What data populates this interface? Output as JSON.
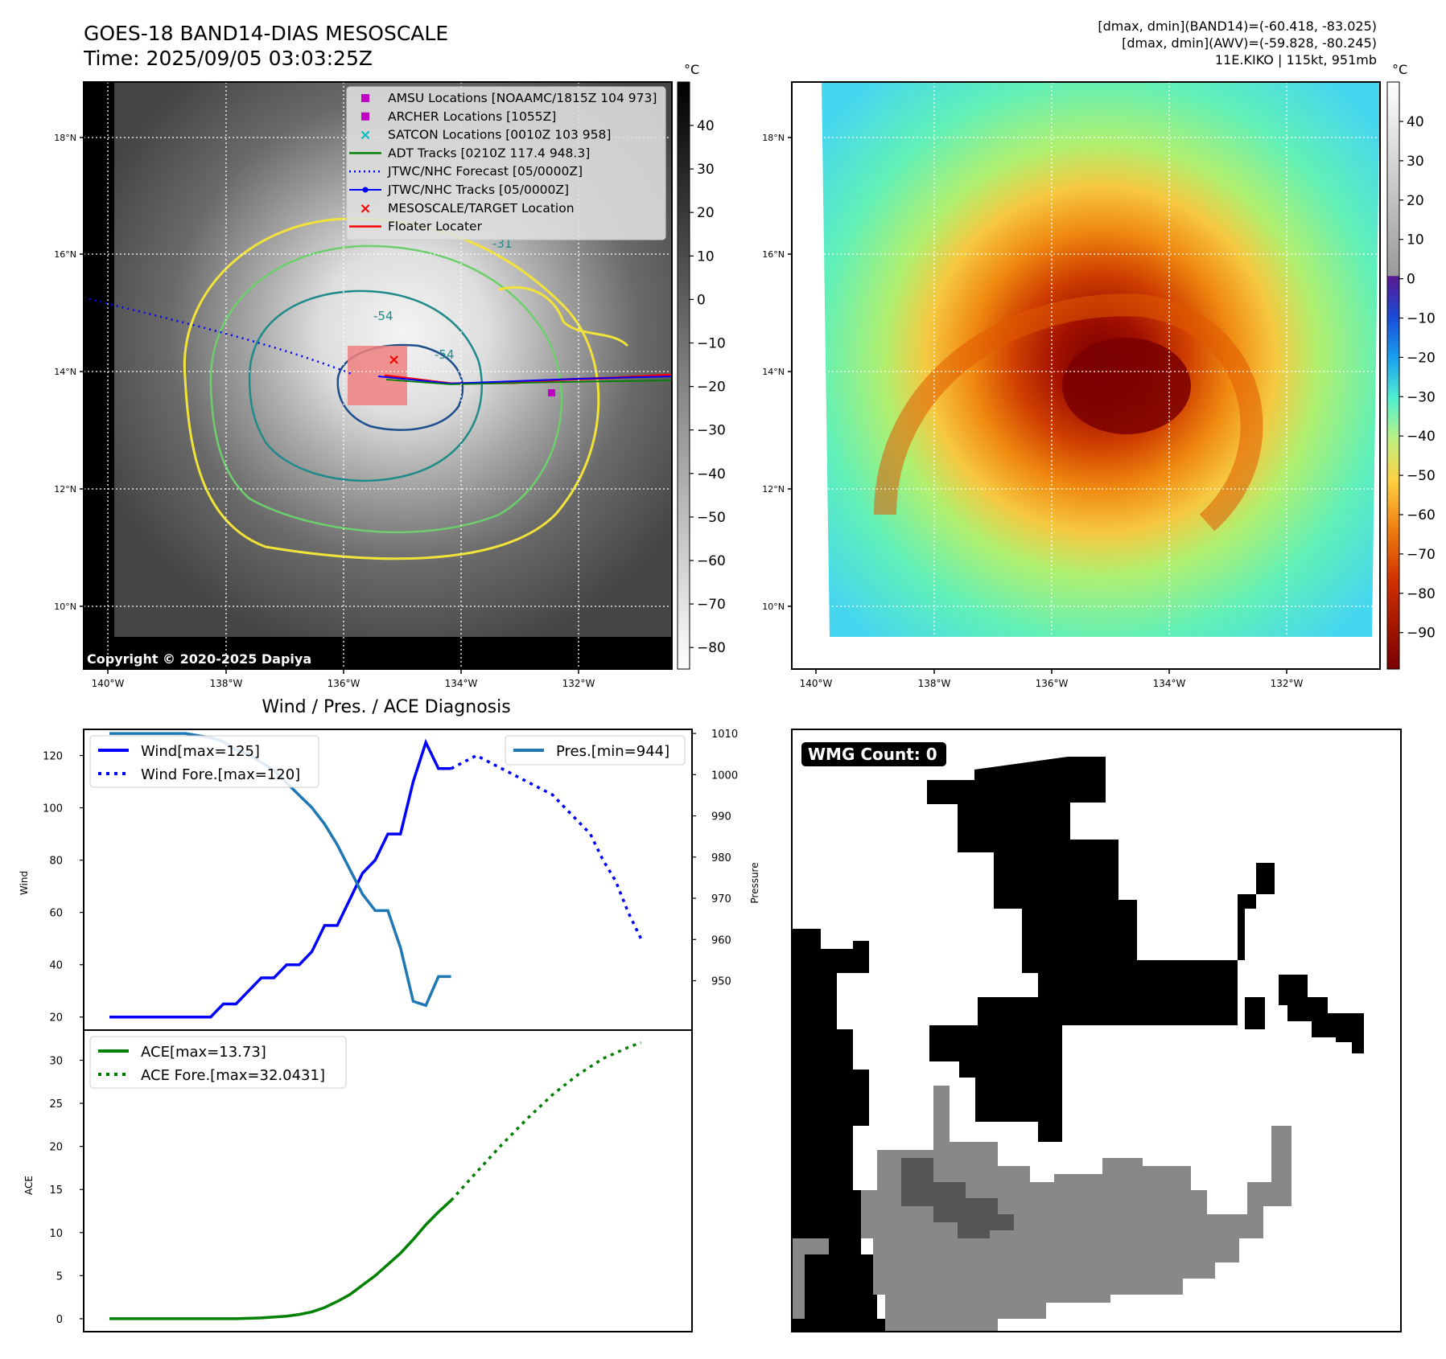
{
  "header": {
    "title_line1": "GOES-18 BAND14-DIAS MESOSCALE",
    "title_line2": "Time: 2025/09/05 03:03:25Z",
    "info_line1": "[dmax, dmin](BAND14)=(-60.418, -83.025)",
    "info_line2": "[dmax, dmin](AWV)=(-59.828, -80.245)",
    "info_line3": "11E.KIKO | 115kt, 951mb"
  },
  "copyright": "Copyright © 2020-2025 Dapiya",
  "colorbar_unit": "°C",
  "colors": {
    "wind": "#0000ff",
    "pressure": "#1f77b4",
    "ace": "#008000",
    "track": "#ff0000",
    "target_box": "#f08080",
    "amsu": "#c000c0",
    "satcon": "#00bfbf",
    "adt": "#008000",
    "contour_yellow": "#f2e33a",
    "contour_green": "#6ccf6c",
    "contour_teal": "#1f8a8a",
    "contour_blue": "#1c4e8c"
  },
  "map_ir": {
    "lat_ticks": [
      "18°N",
      "16°N",
      "14°N",
      "12°N",
      "10°N"
    ],
    "lon_ticks": [
      "140°W",
      "138°W",
      "136°W",
      "134°W",
      "132°W"
    ],
    "contour_labels": [
      "-31",
      "-54",
      "-54"
    ],
    "legend": [
      {
        "label": "AMSU Locations [NOAAMC/1815Z 104 973]",
        "marker": "square",
        "color": "#c000c0"
      },
      {
        "label": "ARCHER Locations [1055Z]",
        "marker": "square",
        "color": "#c000c0"
      },
      {
        "label": "SATCON Locations [0010Z 103 958]",
        "marker": "x",
        "color": "#00bfbf"
      },
      {
        "label": "ADT Tracks [0210Z 117.4 948.3]",
        "marker": "line",
        "color": "#008000"
      },
      {
        "label": "JTWC/NHC Forecast [05/0000Z]",
        "marker": "dotted",
        "color": "#0000ff"
      },
      {
        "label": "JTWC/NHC Tracks [05/0000Z]",
        "marker": "dotline",
        "color": "#0000ff"
      },
      {
        "label": "MESOSCALE/TARGET Location",
        "marker": "x",
        "color": "#ff0000"
      },
      {
        "label": "Floater Locater",
        "marker": "line",
        "color": "#ff0000"
      }
    ],
    "colorbar_ticks": [
      "40",
      "30",
      "20",
      "10",
      "0",
      "−10",
      "−20",
      "−30",
      "−40",
      "−50",
      "−60",
      "−70",
      "−80"
    ]
  },
  "map_awv": {
    "lat_ticks": [
      "18°N",
      "16°N",
      "14°N",
      "12°N",
      "10°N"
    ],
    "lon_ticks": [
      "140°W",
      "138°W",
      "136°W",
      "134°W",
      "132°W"
    ],
    "colorbar_ticks": [
      "40",
      "30",
      "20",
      "10",
      "0",
      "−10",
      "−20",
      "−30",
      "−40",
      "−50",
      "−60",
      "−70",
      "−80",
      "−90"
    ]
  },
  "wmg": {
    "label": "WMG Count: 0"
  },
  "chart_data": [
    {
      "type": "line",
      "title": "Wind / Pres. / ACE Diagnosis",
      "ylabel": "Wind",
      "ylabel_right": "Pressure",
      "ylim": [
        15,
        130
      ],
      "ylim_right": [
        938,
        1011
      ],
      "yticks": [
        20,
        40,
        60,
        80,
        100,
        120
      ],
      "yticks_right": [
        950,
        960,
        970,
        980,
        990,
        1000,
        1010
      ],
      "x_range": [
        0,
        44
      ],
      "series": [
        {
          "name": "Wind[max=125]",
          "style": "solid",
          "axis": "left",
          "x": [
            0,
            8,
            9,
            10,
            11,
            12,
            13,
            14,
            15,
            16,
            17,
            18,
            19,
            20,
            21,
            22,
            23,
            24,
            25,
            26,
            27
          ],
          "values": [
            20,
            20,
            25,
            25,
            30,
            35,
            35,
            40,
            40,
            45,
            55,
            55,
            65,
            75,
            80,
            90,
            90,
            110,
            125,
            115,
            115
          ]
        },
        {
          "name": "Wind Fore.[max=120]",
          "style": "dotted",
          "axis": "left",
          "x": [
            27,
            29,
            31,
            33,
            35,
            36,
            37,
            38,
            39,
            40,
            41,
            42
          ],
          "values": [
            115,
            120,
            115,
            110,
            105,
            100,
            95,
            90,
            80,
            72,
            60,
            50
          ]
        },
        {
          "name": "Pres.[min=944]",
          "style": "solid",
          "axis": "right",
          "x": [
            0,
            2,
            4,
            6,
            8,
            9,
            10,
            11,
            12,
            13,
            14,
            15,
            16,
            17,
            18,
            19,
            20,
            21,
            22,
            23,
            24,
            25,
            26,
            27
          ],
          "values": [
            1010,
            1010,
            1010,
            1010,
            1009,
            1008,
            1006,
            1005,
            1003,
            1001,
            998,
            995,
            992,
            988,
            983,
            977,
            971,
            967,
            967,
            958,
            945,
            944,
            951,
            951
          ]
        }
      ]
    },
    {
      "type": "line",
      "ylabel": "ACE",
      "ylim": [
        -1.5,
        33.5
      ],
      "yticks": [
        0,
        5,
        10,
        15,
        20,
        25,
        30
      ],
      "x_range": [
        0,
        44
      ],
      "series": [
        {
          "name": "ACE[max=13.73]",
          "style": "solid",
          "x": [
            0,
            4,
            8,
            10,
            12,
            14,
            15,
            16,
            17,
            18,
            19,
            20,
            21,
            22,
            23,
            24,
            25,
            26,
            27
          ],
          "values": [
            0,
            0,
            0,
            0,
            0.1,
            0.3,
            0.5,
            0.8,
            1.3,
            2.0,
            2.8,
            3.9,
            5.0,
            6.3,
            7.6,
            9.2,
            10.9,
            12.4,
            13.73
          ]
        },
        {
          "name": "ACE Fore.[max=32.0431]",
          "style": "dotted",
          "x": [
            27,
            29,
            31,
            33,
            35,
            37,
            39,
            41,
            42
          ],
          "values": [
            13.73,
            17.0,
            20.2,
            23.2,
            26.0,
            28.3,
            30.2,
            31.5,
            32.0431
          ]
        }
      ]
    }
  ]
}
